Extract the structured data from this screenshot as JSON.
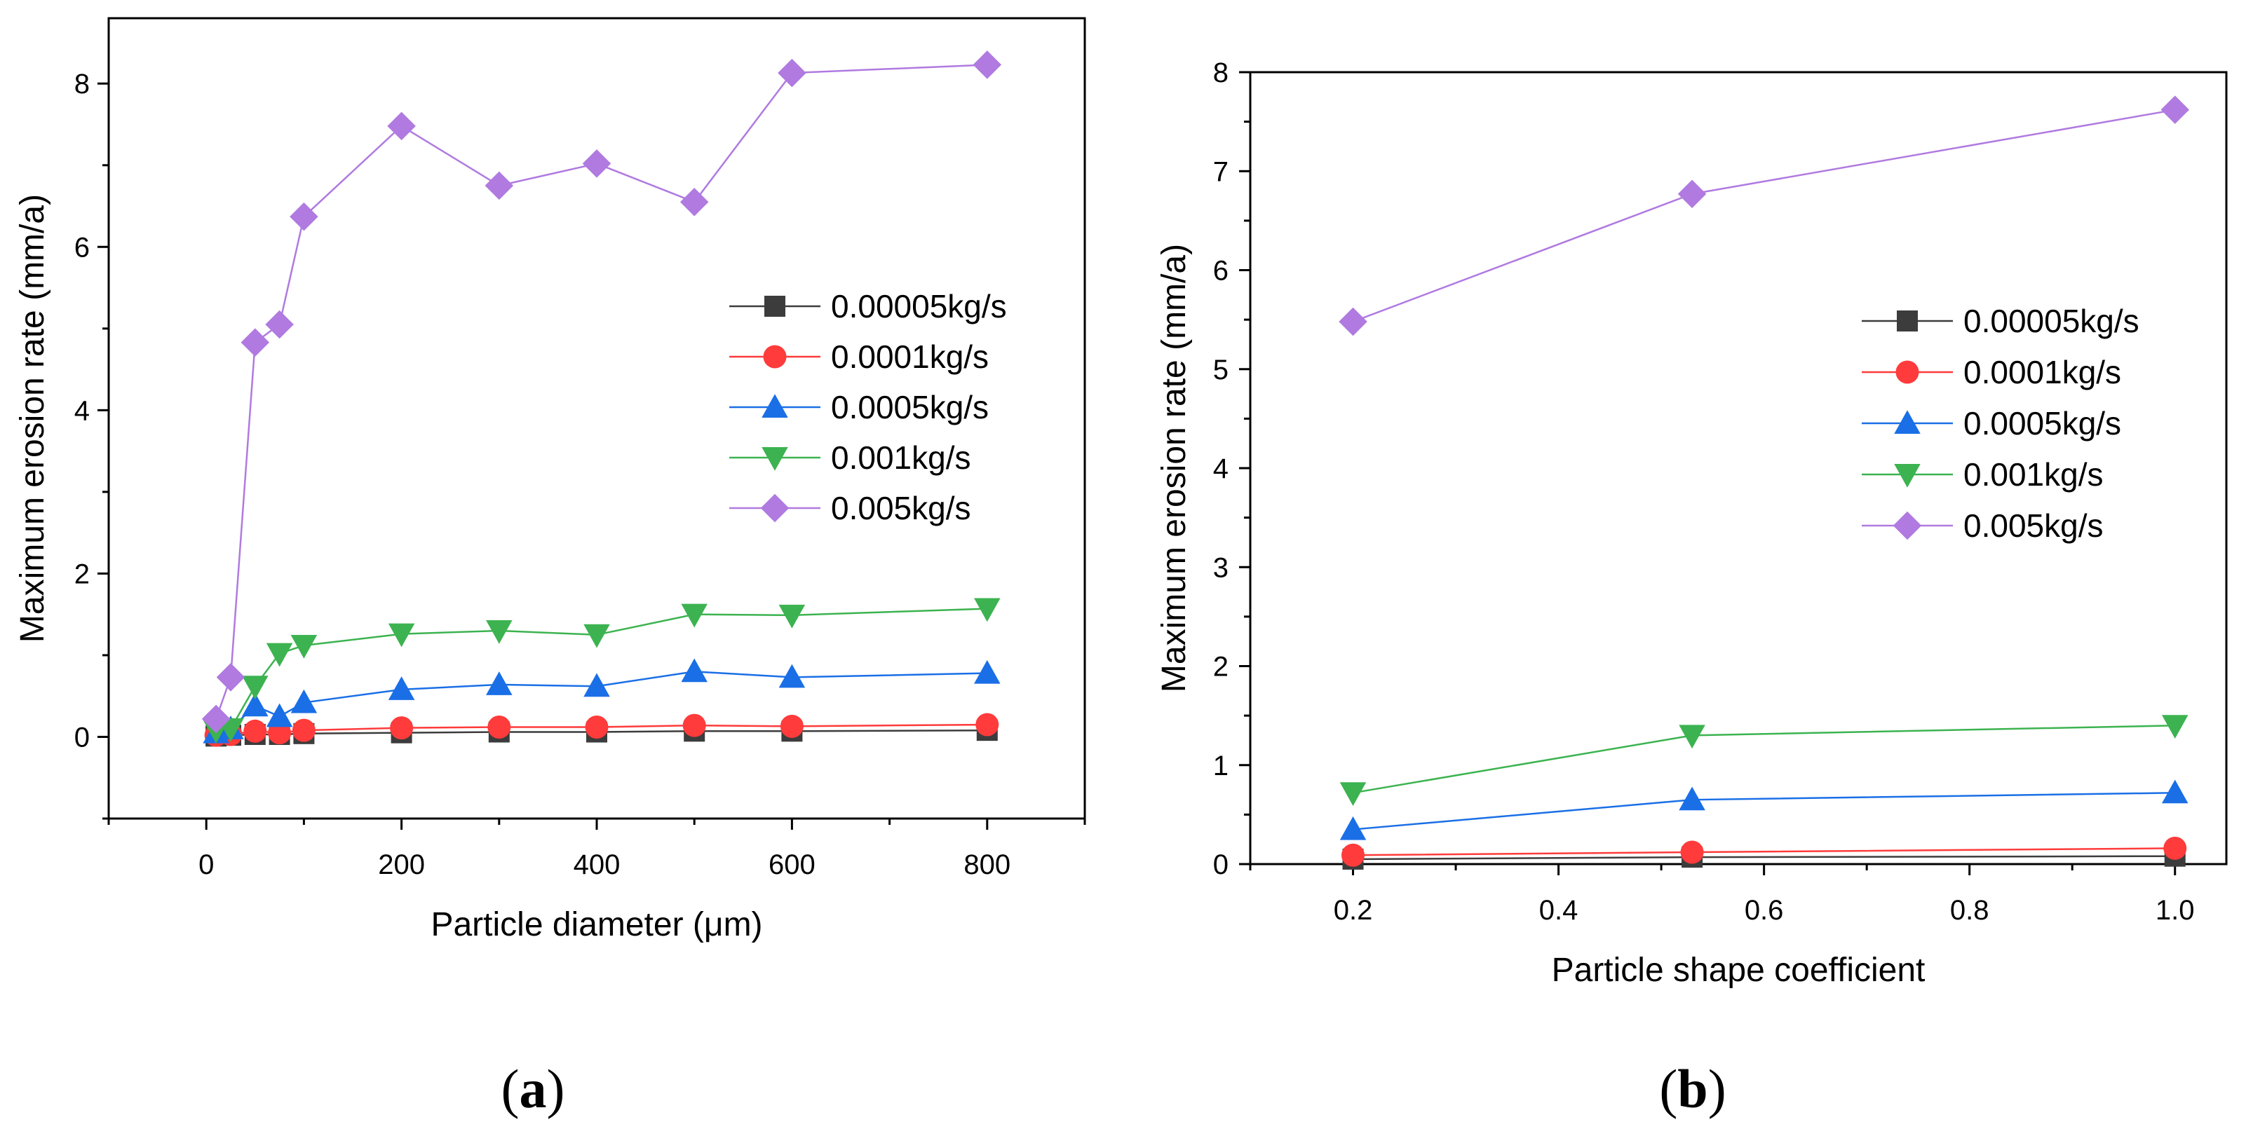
{
  "chart_data": [
    {
      "type": "line",
      "panel_label": "a",
      "xlabel": "Particle diameter (μm)",
      "ylabel": "Maximum erosion rate (mm/a)",
      "xlim": [
        -100,
        900
      ],
      "ylim": [
        -1,
        8.8
      ],
      "xticks": [
        0,
        200,
        400,
        600,
        800
      ],
      "yticks": [
        0,
        2,
        4,
        6,
        8
      ],
      "legend_position": "right",
      "x": [
        10,
        25,
        50,
        75,
        100,
        200,
        300,
        400,
        500,
        600,
        800
      ],
      "series": [
        {
          "name": "0.00005kg/s",
          "color": "#3c3c3c",
          "marker": "square",
          "values": [
            0.01,
            0.02,
            0.03,
            0.03,
            0.04,
            0.05,
            0.06,
            0.06,
            0.07,
            0.07,
            0.08
          ]
        },
        {
          "name": "0.0001kg/s",
          "color": "#ff3b3b",
          "marker": "circle",
          "values": [
            0.02,
            0.03,
            0.07,
            0.05,
            0.08,
            0.11,
            0.12,
            0.12,
            0.14,
            0.13,
            0.15
          ]
        },
        {
          "name": "0.0005kg/s",
          "color": "#1a6fe6",
          "marker": "triangle-up",
          "values": [
            0.05,
            0.1,
            0.38,
            0.25,
            0.42,
            0.58,
            0.64,
            0.62,
            0.8,
            0.73,
            0.78
          ]
        },
        {
          "name": "0.001kg/s",
          "color": "#3cb350",
          "marker": "triangle-down",
          "values": [
            0.08,
            0.1,
            0.62,
            1.02,
            1.12,
            1.26,
            1.3,
            1.25,
            1.5,
            1.49,
            1.57
          ]
        },
        {
          "name": "0.005kg/s",
          "color": "#b07ae0",
          "marker": "diamond",
          "values": [
            0.22,
            0.73,
            4.83,
            5.05,
            6.37,
            7.48,
            6.75,
            7.02,
            6.55,
            8.13,
            8.23
          ]
        }
      ]
    },
    {
      "type": "line",
      "panel_label": "b",
      "xlabel": "Particle shape coefficient",
      "ylabel": "Maximum erosion rate (mm/a)",
      "xlim": [
        0.1,
        1.05
      ],
      "ylim": [
        0,
        8
      ],
      "xticks": [
        0.2,
        0.4,
        0.6,
        0.8,
        1.0
      ],
      "xtick_labels": [
        "0.2",
        "0.4",
        "0.6",
        "0.8",
        "1.0"
      ],
      "yticks": [
        0,
        1,
        2,
        3,
        4,
        5,
        6,
        7,
        8
      ],
      "legend_position": "right",
      "x": [
        0.2,
        0.53,
        1.0
      ],
      "series": [
        {
          "name": "0.00005kg/s",
          "color": "#3c3c3c",
          "marker": "square",
          "values": [
            0.05,
            0.07,
            0.08
          ]
        },
        {
          "name": "0.0001kg/s",
          "color": "#ff3b3b",
          "marker": "circle",
          "values": [
            0.09,
            0.12,
            0.16
          ]
        },
        {
          "name": "0.0005kg/s",
          "color": "#1a6fe6",
          "marker": "triangle-up",
          "values": [
            0.35,
            0.65,
            0.72
          ]
        },
        {
          "name": "0.001kg/s",
          "color": "#3cb350",
          "marker": "triangle-down",
          "values": [
            0.72,
            1.3,
            1.4
          ]
        },
        {
          "name": "0.005kg/s",
          "color": "#b07ae0",
          "marker": "diamond",
          "values": [
            5.48,
            6.77,
            7.62
          ]
        }
      ]
    }
  ]
}
